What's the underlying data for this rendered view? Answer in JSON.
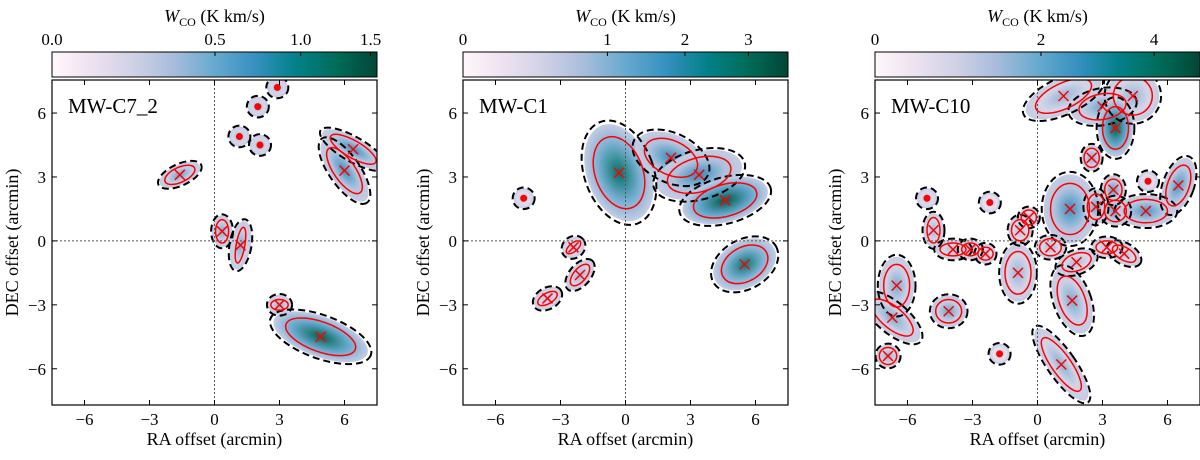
{
  "colormap": [
    "#fff7fb",
    "#ece2f0",
    "#d0d1e6",
    "#a6bddb",
    "#67a9cf",
    "#3690c0",
    "#02818a",
    "#016c59",
    "#014636"
  ],
  "ellipse_color": "#ff0000",
  "contour_color": "#000000",
  "chart_data": [
    {
      "type": "heatmap",
      "label": "MW-C7_2",
      "colorbar": {
        "label_main": "W",
        "label_sub": "CO",
        "label_unit": " (K km/s)",
        "ticks": [
          0.0,
          0.5,
          1.0,
          1.5
        ],
        "tick_labels": [
          "0.0",
          "0.5",
          "1.0",
          "1.5"
        ],
        "vmax": 1.55,
        "gamma": 0.61
      },
      "xlabel": "RA offset (arcmin)",
      "ylabel": "DEC offset (arcmin)",
      "xlim": [
        -7.5,
        7.5
      ],
      "ylim": [
        -7.7,
        7.55
      ],
      "xticks": [
        -6,
        -3,
        0,
        3,
        6
      ],
      "yticks": [
        -6,
        -3,
        0,
        3,
        6
      ],
      "clumps": [
        {
          "x": -1.6,
          "y": 3.1,
          "a": 0.75,
          "b": 0.35,
          "angle": 25,
          "marker": "cross",
          "peak": 0.5
        },
        {
          "x": 1.15,
          "y": 4.9,
          "a": 0,
          "b": 0,
          "angle": 0,
          "marker": "dot",
          "peak": 0.35
        },
        {
          "x": 2.1,
          "y": 4.5,
          "a": 0,
          "b": 0,
          "angle": 0,
          "marker": "dot",
          "peak": 0.35
        },
        {
          "x": 2.0,
          "y": 6.3,
          "a": 0,
          "b": 0,
          "angle": 0,
          "marker": "dot",
          "peak": 0.35
        },
        {
          "x": 2.9,
          "y": 7.2,
          "a": 0,
          "b": 0,
          "angle": 0,
          "marker": "dot",
          "peak": 0.35
        },
        {
          "x": 0.35,
          "y": 0.45,
          "a": 0.3,
          "b": 0.55,
          "angle": 0,
          "marker": "cross",
          "peak": 0.45
        },
        {
          "x": 1.2,
          "y": -0.2,
          "a": 0.2,
          "b": 0.85,
          "angle": -10,
          "marker": "cross",
          "peak": 0.45
        },
        {
          "x": 3.0,
          "y": -3.0,
          "a": 0.4,
          "b": 0.25,
          "angle": 0,
          "marker": "cross",
          "peak": 0.4
        },
        {
          "x": 4.9,
          "y": -4.5,
          "a": 1.7,
          "b": 0.7,
          "angle": -20,
          "marker": "cross",
          "peak": 1.3
        },
        {
          "x": 6.0,
          "y": 3.3,
          "a": 1.25,
          "b": 0.5,
          "angle": -55,
          "marker": "cross",
          "peak": 0.7
        },
        {
          "x": 6.4,
          "y": 4.3,
          "a": 1.2,
          "b": 0.4,
          "angle": -30,
          "marker": "cross",
          "peak": 0.7
        }
      ]
    },
    {
      "type": "heatmap",
      "label": "MW-C1",
      "colorbar": {
        "label_main": "W",
        "label_sub": "CO",
        "label_unit": " (K km/s)",
        "ticks": [
          0,
          1,
          2,
          3
        ],
        "tick_labels": [
          "0",
          "1",
          "2",
          "3"
        ],
        "vmax": 3.7,
        "gamma": 0.62
      },
      "xlabel": "RA offset (arcmin)",
      "ylabel": "DEC offset (arcmin)",
      "xlim": [
        -7.5,
        7.5
      ],
      "ylim": [
        -7.7,
        7.55
      ],
      "xticks": [
        -6,
        -3,
        0,
        3,
        6
      ],
      "yticks": [
        -6,
        -3,
        0,
        3,
        6
      ],
      "clumps": [
        {
          "x": -0.3,
          "y": 3.2,
          "a": 1.1,
          "b": 1.75,
          "angle": 20,
          "marker": "cross",
          "peak": 2.8
        },
        {
          "x": 2.1,
          "y": 3.9,
          "a": 1.3,
          "b": 0.8,
          "angle": -25,
          "marker": "cross",
          "peak": 1.8
        },
        {
          "x": 3.4,
          "y": 3.1,
          "a": 1.5,
          "b": 0.8,
          "angle": 15,
          "marker": "cross",
          "peak": 1.8
        },
        {
          "x": 4.6,
          "y": 1.9,
          "a": 1.5,
          "b": 0.75,
          "angle": 15,
          "marker": "cross",
          "peak": 3.3
        },
        {
          "x": 5.5,
          "y": -1.1,
          "a": 1.15,
          "b": 0.8,
          "angle": 30,
          "marker": "cross",
          "peak": 2.6
        },
        {
          "x": -4.7,
          "y": 2.0,
          "a": 0,
          "b": 0,
          "angle": 0,
          "marker": "dot",
          "peak": 0.6
        },
        {
          "x": -2.4,
          "y": -0.3,
          "a": 0.4,
          "b": 0.2,
          "angle": 40,
          "marker": "cross",
          "peak": 0.7
        },
        {
          "x": -2.1,
          "y": -1.6,
          "a": 0.6,
          "b": 0.3,
          "angle": 50,
          "marker": "cross",
          "peak": 0.9
        },
        {
          "x": -3.6,
          "y": -2.7,
          "a": 0.5,
          "b": 0.25,
          "angle": 30,
          "marker": "cross",
          "peak": 0.7
        }
      ]
    },
    {
      "type": "heatmap",
      "label": "MW-C10",
      "colorbar": {
        "label_main": "W",
        "label_sub": "CO",
        "label_unit": " (K km/s)",
        "ticks": [
          0,
          2,
          4
        ],
        "tick_labels": [
          "0",
          "2",
          "4"
        ],
        "vmax": 4.9,
        "gamma": 0.75
      },
      "xlabel": "RA offset (arcmin)",
      "ylabel": "DEC offset (arcmin)",
      "xlim": [
        -7.5,
        7.5
      ],
      "ylim": [
        -7.7,
        7.55
      ],
      "xticks": [
        -6,
        -3,
        0,
        3,
        6
      ],
      "yticks": [
        -6,
        -3,
        0,
        3,
        6
      ],
      "clumps": [
        {
          "x": 1.2,
          "y": 6.8,
          "a": 1.4,
          "b": 0.6,
          "angle": 25,
          "marker": "cross",
          "peak": 1.5
        },
        {
          "x": 3.0,
          "y": 6.3,
          "a": 1.1,
          "b": 0.6,
          "angle": 10,
          "marker": "cross",
          "peak": 2.0
        },
        {
          "x": 4.4,
          "y": 6.8,
          "a": 0.9,
          "b": 0.9,
          "angle": 0,
          "marker": "cross",
          "peak": 1.5
        },
        {
          "x": 3.6,
          "y": 5.3,
          "a": 0.6,
          "b": 1.0,
          "angle": 0,
          "marker": "cross",
          "peak": 4.3
        },
        {
          "x": 2.5,
          "y": 3.9,
          "a": 0.35,
          "b": 0.45,
          "angle": 0,
          "marker": "cross",
          "peak": 1.8
        },
        {
          "x": 1.5,
          "y": 1.5,
          "a": 0.9,
          "b": 1.2,
          "angle": 0,
          "marker": "cross",
          "peak": 2.6
        },
        {
          "x": 2.7,
          "y": 1.6,
          "a": 0.4,
          "b": 0.6,
          "angle": 0,
          "marker": "cross",
          "peak": 2.0
        },
        {
          "x": 3.5,
          "y": 2.4,
          "a": 0.4,
          "b": 0.5,
          "angle": 0,
          "marker": "cross",
          "peak": 2.2
        },
        {
          "x": 3.6,
          "y": 1.4,
          "a": 0.5,
          "b": 0.5,
          "angle": 0,
          "marker": "cross",
          "peak": 2.2
        },
        {
          "x": 5.0,
          "y": 1.4,
          "a": 1.0,
          "b": 0.55,
          "angle": 0,
          "marker": "cross",
          "peak": 2.4
        },
        {
          "x": 6.5,
          "y": 2.6,
          "a": 0.5,
          "b": 1.0,
          "angle": -20,
          "marker": "cross",
          "peak": 2.4
        },
        {
          "x": 5.1,
          "y": 2.8,
          "a": 0,
          "b": 0,
          "angle": 0,
          "marker": "dot",
          "peak": 1.0
        },
        {
          "x": -0.4,
          "y": 1.1,
          "a": 0.35,
          "b": 0.35,
          "angle": 0,
          "marker": "cross",
          "peak": 1.2
        },
        {
          "x": -0.8,
          "y": 0.5,
          "a": 0.4,
          "b": 0.5,
          "angle": 0,
          "marker": "cross",
          "peak": 1.2
        },
        {
          "x": 0.6,
          "y": -0.3,
          "a": 0.5,
          "b": 0.4,
          "angle": 0,
          "marker": "cross",
          "peak": 1.3
        },
        {
          "x": 1.8,
          "y": -1.0,
          "a": 0.7,
          "b": 0.4,
          "angle": 20,
          "marker": "cross",
          "peak": 1.3
        },
        {
          "x": 3.2,
          "y": -0.3,
          "a": 0.5,
          "b": 0.3,
          "angle": 0,
          "marker": "cross",
          "peak": 1.2
        },
        {
          "x": 4.0,
          "y": -0.6,
          "a": 0.6,
          "b": 0.3,
          "angle": -30,
          "marker": "cross",
          "peak": 1.2
        },
        {
          "x": -0.9,
          "y": -1.5,
          "a": 0.6,
          "b": 1.0,
          "angle": 0,
          "marker": "cross",
          "peak": 1.5
        },
        {
          "x": 1.6,
          "y": -2.8,
          "a": 0.6,
          "b": 1.2,
          "angle": 20,
          "marker": "cross",
          "peak": 1.8
        },
        {
          "x": 1.1,
          "y": -5.8,
          "a": 0.45,
          "b": 1.5,
          "angle": 35,
          "marker": "cross",
          "peak": 1.6
        },
        {
          "x": -1.75,
          "y": -5.3,
          "a": 0,
          "b": 0,
          "angle": 0,
          "marker": "dot",
          "peak": 0.8
        },
        {
          "x": -2.2,
          "y": 1.8,
          "a": 0,
          "b": 0,
          "angle": 0,
          "marker": "dot",
          "peak": 0.8
        },
        {
          "x": -3.9,
          "y": -0.4,
          "a": 0.6,
          "b": 0.3,
          "angle": 0,
          "marker": "cross",
          "peak": 1.3
        },
        {
          "x": -3.1,
          "y": -0.4,
          "a": 0.4,
          "b": 0.3,
          "angle": 0,
          "marker": "cross",
          "peak": 1.3
        },
        {
          "x": -2.4,
          "y": -0.6,
          "a": 0.35,
          "b": 0.3,
          "angle": 0,
          "marker": "cross",
          "peak": 1.2
        },
        {
          "x": -4.8,
          "y": 0.5,
          "a": 0.3,
          "b": 0.6,
          "angle": 0,
          "marker": "cross",
          "peak": 1.4
        },
        {
          "x": -5.1,
          "y": 2.0,
          "a": 0,
          "b": 0,
          "angle": 0,
          "marker": "dot",
          "peak": 1.2
        },
        {
          "x": -4.1,
          "y": -3.3,
          "a": 0.6,
          "b": 0.55,
          "angle": 0,
          "marker": "cross",
          "peak": 2.0
        },
        {
          "x": -6.5,
          "y": -2.1,
          "a": 0.6,
          "b": 1.0,
          "angle": 0,
          "marker": "cross",
          "peak": 1.8
        },
        {
          "x": -6.7,
          "y": -3.6,
          "a": 0.5,
          "b": 1.2,
          "angle": 50,
          "marker": "cross",
          "peak": 1.8
        },
        {
          "x": -6.9,
          "y": -5.4,
          "a": 0.4,
          "b": 0.4,
          "angle": 0,
          "marker": "cross",
          "peak": 1.6
        }
      ]
    }
  ]
}
